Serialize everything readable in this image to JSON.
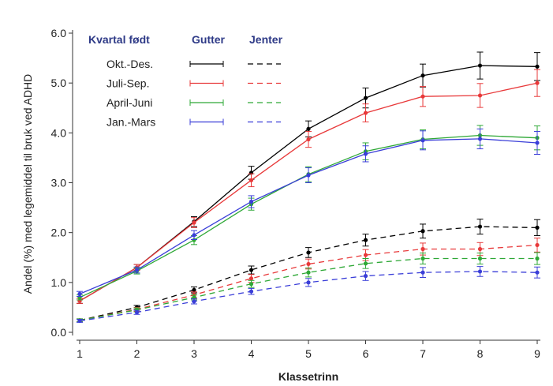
{
  "chart_data": {
    "type": "line",
    "xlabel": "Klassetrinn",
    "ylabel": "Andel (%) med legemiddel til bruk ved ADHD",
    "x": [
      1,
      2,
      3,
      4,
      5,
      6,
      7,
      8,
      9
    ],
    "xlim": [
      1,
      9
    ],
    "ylim": [
      0,
      6
    ],
    "y_ticks": [
      "0.0",
      "1.0",
      "2.0",
      "3.0",
      "4.0",
      "5.0",
      "6.0"
    ],
    "x_ticks": [
      "1",
      "2",
      "3",
      "4",
      "5",
      "6",
      "7",
      "8",
      "9"
    ],
    "grid": false,
    "legend": {
      "placement": "top-left",
      "title": "Kvartal født",
      "col_solid": "Gutter",
      "col_dashed": "Jenter",
      "title_color": "#2e3a87"
    },
    "series": [
      {
        "group": "Okt.-Des.",
        "sex": "Gutter",
        "color": "#000000",
        "dash": false,
        "values": [
          0.63,
          1.3,
          2.22,
          3.2,
          4.08,
          4.7,
          5.15,
          5.35,
          5.33
        ],
        "err": [
          0.05,
          0.06,
          0.1,
          0.13,
          0.16,
          0.2,
          0.23,
          0.27,
          0.28
        ]
      },
      {
        "group": "Juli-Sep.",
        "sex": "Gutter",
        "color": "#e8393a",
        "dash": false,
        "values": [
          0.63,
          1.3,
          2.2,
          3.05,
          3.87,
          4.4,
          4.73,
          4.75,
          5.0
        ],
        "err": [
          0.05,
          0.06,
          0.1,
          0.13,
          0.16,
          0.18,
          0.2,
          0.24,
          0.27
        ]
      },
      {
        "group": "April-Juni",
        "sex": "Gutter",
        "color": "#2ea836",
        "dash": false,
        "values": [
          0.7,
          1.23,
          1.85,
          2.57,
          3.17,
          3.63,
          3.87,
          3.95,
          3.9
        ],
        "err": [
          0.05,
          0.06,
          0.09,
          0.12,
          0.15,
          0.17,
          0.19,
          0.2,
          0.24
        ]
      },
      {
        "group": "Jan.-Mars",
        "sex": "Gutter",
        "color": "#3a3ed8",
        "dash": false,
        "values": [
          0.77,
          1.25,
          1.95,
          2.62,
          3.15,
          3.58,
          3.85,
          3.88,
          3.8
        ],
        "err": [
          0.05,
          0.06,
          0.09,
          0.12,
          0.15,
          0.16,
          0.19,
          0.2,
          0.23
        ]
      },
      {
        "group": "Okt.-Des.",
        "sex": "Jenter",
        "color": "#000000",
        "dash": true,
        "values": [
          0.24,
          0.5,
          0.85,
          1.25,
          1.6,
          1.85,
          2.03,
          2.12,
          2.1
        ],
        "err": [
          0.03,
          0.04,
          0.06,
          0.08,
          0.1,
          0.12,
          0.14,
          0.15,
          0.16
        ]
      },
      {
        "group": "Juli-Sep.",
        "sex": "Jenter",
        "color": "#e8393a",
        "dash": true,
        "values": [
          0.24,
          0.46,
          0.75,
          1.08,
          1.37,
          1.55,
          1.67,
          1.67,
          1.75
        ],
        "err": [
          0.03,
          0.04,
          0.06,
          0.08,
          0.1,
          0.11,
          0.12,
          0.13,
          0.14
        ]
      },
      {
        "group": "April-Juni",
        "sex": "Jenter",
        "color": "#2ea836",
        "dash": true,
        "values": [
          0.24,
          0.45,
          0.7,
          0.97,
          1.2,
          1.38,
          1.48,
          1.48,
          1.48
        ],
        "err": [
          0.03,
          0.04,
          0.05,
          0.07,
          0.09,
          0.1,
          0.11,
          0.11,
          0.12
        ]
      },
      {
        "group": "Jan.-Mars",
        "sex": "Jenter",
        "color": "#3a3ed8",
        "dash": true,
        "values": [
          0.23,
          0.4,
          0.62,
          0.82,
          1.0,
          1.13,
          1.2,
          1.22,
          1.2
        ],
        "err": [
          0.03,
          0.04,
          0.05,
          0.06,
          0.08,
          0.09,
          0.1,
          0.1,
          0.11
        ]
      }
    ],
    "legend_rows": [
      "Okt.-Des.",
      "Juli-Sep.",
      "April-Juni",
      "Jan.-Mars"
    ],
    "legend_colors": [
      "#000000",
      "#e8393a",
      "#2ea836",
      "#3a3ed8"
    ]
  }
}
